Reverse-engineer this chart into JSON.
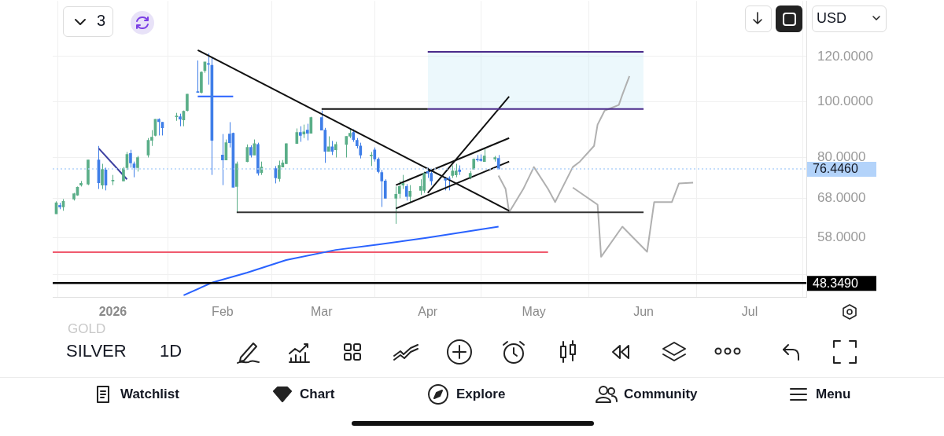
{
  "chart_data": {
    "type": "candlestick",
    "log": "y",
    "grid": true,
    "legend": false,
    "xlim": [
      "2025-12-16",
      "2026-07-17"
    ],
    "xticks": [
      {
        "value": "2026-01-02",
        "label": "2026"
      },
      {
        "value": "2026-02-02",
        "label": "Feb"
      },
      {
        "value": "2026-03-02",
        "label": "Mar"
      },
      {
        "value": "2026-04-01",
        "label": "Apr"
      },
      {
        "value": "2026-05-01",
        "label": "May"
      },
      {
        "value": "2026-06-01",
        "label": "Jun"
      },
      {
        "value": "2026-07-01",
        "label": "Jul"
      }
    ],
    "ylim": [
      45.7,
      150
    ],
    "yticks": [
      {
        "value": 50,
        "label": null
      },
      {
        "value": 58,
        "label": "58.0000"
      },
      {
        "value": 68,
        "label": "68.0000"
      },
      {
        "value": 80,
        "label": "80.0000"
      },
      {
        "value": 100,
        "label": "100.0000"
      },
      {
        "value": 120,
        "label": "120.0000"
      }
    ],
    "ref_lines": [
      {
        "axis": "y",
        "value": 48.349,
        "label": "48.3490",
        "color": "#000000"
      },
      {
        "axis": "y",
        "value": 76.446,
        "label": "76.4460",
        "color": "#b3d3fa",
        "line_style": "dotted"
      }
    ],
    "annotations": [
      "3",
      "USD",
      "GOLD",
      "SILVER",
      "1D",
      "Watchlist",
      "Chart",
      "Explore",
      "Community",
      "Menu"
    ],
    "series": [
      {
        "color": "#5aae88",
        "x": [
          "2025-12-17",
          "2025-12-19",
          "2025-12-22",
          "2025-12-23",
          "2025-12-24",
          "2025-12-26",
          "2025-12-30",
          "2026-01-02",
          "2026-01-05",
          "2026-01-06",
          "2026-01-09",
          "2026-01-12",
          "2026-01-13",
          "2026-01-14",
          "2026-01-20",
          "2026-01-22",
          "2026-01-23",
          "2026-01-27",
          "2026-01-28",
          "2026-02-03",
          "2026-02-06",
          "2026-02-09",
          "2026-02-11",
          "2026-02-13",
          "2026-02-18",
          "2026-02-19",
          "2026-02-20",
          "2026-02-23",
          "2026-02-25",
          "2026-02-27",
          "2026-03-04",
          "2026-03-06",
          "2026-03-09",
          "2026-03-10",
          "2026-03-16",
          "2026-03-23",
          "2026-03-24",
          "2026-03-25",
          "2026-03-27",
          "2026-03-30",
          "2026-03-31",
          "2026-04-08",
          "2026-04-09",
          "2026-04-13",
          "2026-04-14",
          "2026-04-17",
          "2026-04-20"
        ],
        "ohlc": [
          [
            63.8,
            67.1,
            63.8,
            66.7
          ],
          [
            65.6,
            67.7,
            64.6,
            67.1
          ],
          [
            67.7,
            69.4,
            67.3,
            69.2
          ],
          [
            68.8,
            71.2,
            68.6,
            71.0
          ],
          [
            71.6,
            72.8,
            71.2,
            72.1
          ],
          [
            71.9,
            79.2,
            71.6,
            79.2
          ],
          [
            71.6,
            78.0,
            70.5,
            76.3
          ],
          [
            72.8,
            74.6,
            71.6,
            73.0
          ],
          [
            72.8,
            77.0,
            72.8,
            76.5
          ],
          [
            76.8,
            81.8,
            76.1,
            81.0
          ],
          [
            76.8,
            80.5,
            75.6,
            80.0
          ],
          [
            80.8,
            86.5,
            80.0,
            85.7
          ],
          [
            85.7,
            89.3,
            83.8,
            86.8
          ],
          [
            87.4,
            93.3,
            87.1,
            93.3
          ],
          [
            94.2,
            95.7,
            92.7,
            94.5
          ],
          [
            93.0,
            96.6,
            90.7,
            96.3
          ],
          [
            96.6,
            103.2,
            96.3,
            103.2
          ],
          [
            103.9,
            113.0,
            103.5,
            112.7
          ],
          [
            113.4,
            117.4,
            112.4,
            117.4
          ],
          [
            79.2,
            86.0,
            79.2,
            84.9
          ],
          [
            71.2,
            78.7,
            64.2,
            78.0
          ],
          [
            78.7,
            84.3,
            78.5,
            83.3
          ],
          [
            80.8,
            86.0,
            80.8,
            84.6
          ],
          [
            75.3,
            78.7,
            74.6,
            77.0
          ],
          [
            73.5,
            79.0,
            72.6,
            77.5
          ],
          [
            77.0,
            79.2,
            77.0,
            78.3
          ],
          [
            78.0,
            84.6,
            78.0,
            84.6
          ],
          [
            84.6,
            89.9,
            84.6,
            88.5
          ],
          [
            87.9,
            91.3,
            86.5,
            88.7
          ],
          [
            88.2,
            94.2,
            88.2,
            93.9
          ],
          [
            82.0,
            87.1,
            82.0,
            83.5
          ],
          [
            82.5,
            85.2,
            80.0,
            84.3
          ],
          [
            84.3,
            87.1,
            80.0,
            87.1
          ],
          [
            87.1,
            89.9,
            86.5,
            88.2
          ],
          [
            80.5,
            81.8,
            77.3,
            80.8
          ],
          [
            67.9,
            71.2,
            61.3,
            69.0
          ],
          [
            69.2,
            72.8,
            67.9,
            71.2
          ],
          [
            71.6,
            74.6,
            70.5,
            72.1
          ],
          [
            68.4,
            71.6,
            66.7,
            69.9
          ],
          [
            70.1,
            73.3,
            68.8,
            71.2
          ],
          [
            70.1,
            75.6,
            69.4,
            75.1
          ],
          [
            74.4,
            77.5,
            73.7,
            75.8
          ],
          [
            74.6,
            78.0,
            73.9,
            75.8
          ],
          [
            73.9,
            75.8,
            73.3,
            75.1
          ],
          [
            76.3,
            79.7,
            76.3,
            79.5
          ],
          [
            78.7,
            83.0,
            78.7,
            80.5
          ],
          [
            79.5,
            80.5,
            78.7,
            80.0
          ]
        ]
      },
      {
        "color": "#3f7ee8",
        "x": [
          "2025-12-18",
          "2025-12-29",
          "2025-12-31",
          "2026-01-07",
          "2026-01-08",
          "2026-01-15",
          "2026-01-16",
          "2026-01-21",
          "2026-01-26",
          "2026-01-29",
          "2026-01-30",
          "2026-02-02",
          "2026-02-04",
          "2026-02-05",
          "2026-02-10",
          "2026-02-12",
          "2026-02-17",
          "2026-02-24",
          "2026-02-26",
          "2026-03-02",
          "2026-03-03",
          "2026-03-05",
          "2026-03-11",
          "2026-03-12",
          "2026-03-13",
          "2026-03-17",
          "2026-03-18",
          "2026-03-19",
          "2026-03-20",
          "2026-03-26",
          "2026-04-01",
          "2026-04-02",
          "2026-04-06",
          "2026-04-07",
          "2026-04-10",
          "2026-04-15",
          "2026-04-16",
          "2026-04-21"
        ],
        "ohlc": [
          [
            66.0,
            66.7,
            65.0,
            65.6
          ],
          [
            79.2,
            83.8,
            70.5,
            72.3
          ],
          [
            76.1,
            76.8,
            70.1,
            71.6
          ],
          [
            81.3,
            82.5,
            76.8,
            78.3
          ],
          [
            78.0,
            78.7,
            73.9,
            76.8
          ],
          [
            93.3,
            93.6,
            87.4,
            92.4
          ],
          [
            92.2,
            92.2,
            87.4,
            90.1
          ],
          [
            94.2,
            95.4,
            90.7,
            93.3
          ],
          [
            104.2,
            118.1,
            103.9,
            103.9
          ],
          [
            116.7,
            121.5,
            107.2,
            116.3
          ],
          [
            115.9,
            119.3,
            74.6,
            85.7
          ],
          [
            80.8,
            87.9,
            71.6,
            79.2
          ],
          [
            87.9,
            92.2,
            83.3,
            84.9
          ],
          [
            88.2,
            88.4,
            71.0,
            71.0
          ],
          [
            83.3,
            84.0,
            80.0,
            80.8
          ],
          [
            84.3,
            84.9,
            74.4,
            75.1
          ],
          [
            76.5,
            77.3,
            72.1,
            73.7
          ],
          [
            88.5,
            90.7,
            85.2,
            87.4
          ],
          [
            89.3,
            91.6,
            85.7,
            88.2
          ],
          [
            93.9,
            96.6,
            89.3,
            89.3
          ],
          [
            89.3,
            90.1,
            78.3,
            82.0
          ],
          [
            83.5,
            85.5,
            80.8,
            82.0
          ],
          [
            88.5,
            89.6,
            85.2,
            86.0
          ],
          [
            85.7,
            86.5,
            83.0,
            83.8
          ],
          [
            83.8,
            84.9,
            79.7,
            80.8
          ],
          [
            82.5,
            83.3,
            78.7,
            79.5
          ],
          [
            79.5,
            80.0,
            75.1,
            75.6
          ],
          [
            75.3,
            76.1,
            65.6,
            72.8
          ],
          [
            72.8,
            73.3,
            67.9,
            67.9
          ],
          [
            71.2,
            71.9,
            67.3,
            68.4
          ],
          [
            75.6,
            76.8,
            73.7,
            75.1
          ],
          [
            75.1,
            75.8,
            71.6,
            72.8
          ],
          [
            73.5,
            74.0,
            70.1,
            73.0
          ],
          [
            73.7,
            74.2,
            70.1,
            73.3
          ],
          [
            76.1,
            77.5,
            74.6,
            75.6
          ],
          [
            79.5,
            80.8,
            78.7,
            79.2
          ],
          [
            79.5,
            81.0,
            78.7,
            79.0
          ],
          [
            79.7,
            80.8,
            76.4,
            76.4
          ]
        ]
      },
      {
        "type": "line",
        "color": "#2962ff",
        "x": [
          "2026-01-22",
          "2026-01-30",
          "2026-02-09",
          "2026-02-20",
          "2026-03-06",
          "2026-03-18",
          "2026-04-01",
          "2026-04-21"
        ],
        "values": [
          46.0,
          48.4,
          50.4,
          53.0,
          55.2,
          56.4,
          58.0,
          60.6
        ]
      },
      {
        "type": "line",
        "color": "#f05a6e",
        "x": [
          "2025-12-16",
          "2026-05-05"
        ],
        "values": [
          54.7,
          54.7
        ]
      },
      {
        "type": "line",
        "color": "#111111",
        "x": [
          "2026-01-26",
          "2026-04-24"
        ],
        "values": [
          123.1,
          64.6
        ]
      },
      {
        "type": "line",
        "color": "#3b3fa0",
        "x": [
          "2025-12-29",
          "2026-01-06"
        ],
        "values": [
          83.0,
          73.3
        ]
      },
      {
        "type": "line",
        "color": "#2962ff",
        "x": [
          "2026-01-26",
          "2026-02-05"
        ],
        "values": [
          102.2,
          102.2
        ]
      },
      {
        "type": "line",
        "color": "#111111",
        "x": [
          "2026-03-02",
          "2026-04-01"
        ],
        "values": [
          97.2,
          97.2
        ]
      },
      {
        "type": "line",
        "color": "#4a2a8a",
        "x": [
          "2026-04-01",
          "2026-06-01"
        ],
        "values": [
          97.2,
          97.2
        ],
        "lower": [
          97.2,
          97.2
        ],
        "upper": [
          122.3,
          122.3
        ]
      },
      {
        "type": "line",
        "color": "#4a2a8a",
        "x": [
          "2026-04-01",
          "2026-06-01"
        ],
        "values": [
          122.3,
          122.3
        ]
      },
      {
        "type": "line",
        "color": "#333333",
        "x": [
          "2026-02-06",
          "2026-06-01"
        ],
        "values": [
          64.2,
          64.2
        ]
      },
      {
        "type": "line",
        "color": "#111111",
        "x": [
          "2026-03-23",
          "2026-04-24"
        ],
        "values": [
          71.6,
          86.5
        ]
      },
      {
        "type": "line",
        "color": "#111111",
        "x": [
          "2026-03-23",
          "2026-04-24"
        ],
        "values": [
          65.2,
          78.7
        ]
      },
      {
        "type": "line",
        "color": "#111111",
        "x": [
          "2026-04-01",
          "2026-04-24"
        ],
        "values": [
          69.4,
          102.2
        ]
      },
      {
        "type": "line",
        "color": "#b0b0b0",
        "x": [
          "2026-04-21",
          "2026-04-23",
          "2026-04-24",
          "2026-04-28",
          "2026-05-01",
          "2026-05-05",
          "2026-05-07",
          "2026-05-12",
          "2026-05-14",
          "2026-05-18",
          "2026-05-19",
          "2026-05-21",
          "2026-05-25",
          "2026-05-26",
          "2026-05-28"
        ],
        "values": [
          74.4,
          70.5,
          64.2,
          70.5,
          77.0,
          70.5,
          66.9,
          77.0,
          78.7,
          83.8,
          91.3,
          96.6,
          98.8,
          102.9,
          110.9
        ]
      },
      {
        "type": "line",
        "color": "#b0b0b0",
        "x": [
          "2026-05-12",
          "2026-05-19",
          "2026-05-20",
          "2026-05-26",
          "2026-06-02",
          "2026-06-04",
          "2026-06-09",
          "2026-06-11",
          "2026-06-15"
        ],
        "values": [
          70.9,
          66.2,
          53.7,
          60.6,
          54.8,
          66.9,
          66.9,
          72.1,
          72.3
        ]
      }
    ]
  }
}
